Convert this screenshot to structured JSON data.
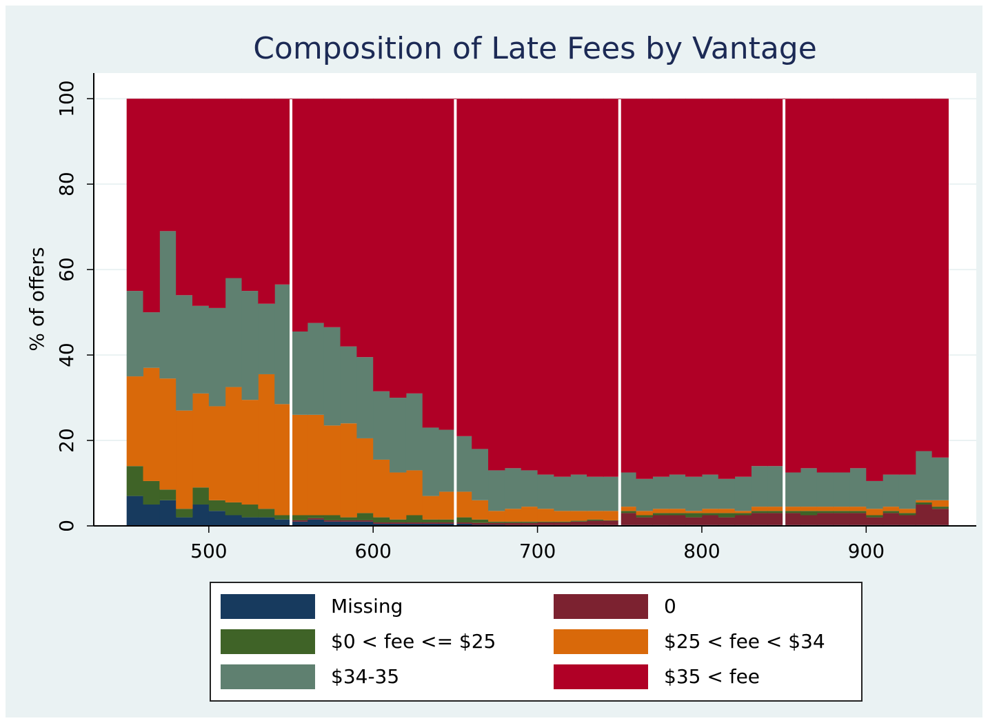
{
  "chart_data": {
    "type": "histogram",
    "title": "Composition of Late Fees by Vantage",
    "y_label": "% of offers",
    "bins": [
      450,
      460,
      470,
      480,
      490,
      500,
      510,
      520,
      530,
      540,
      550,
      560,
      570,
      580,
      590,
      600,
      610,
      620,
      630,
      640,
      650,
      660,
      670,
      680,
      690,
      700,
      710,
      720,
      730,
      740,
      750,
      760,
      770,
      780,
      790,
      800,
      810,
      820,
      830,
      840,
      850,
      860,
      870,
      880,
      890,
      900,
      910,
      920,
      930,
      940,
      950
    ],
    "stacked": true,
    "series": [
      {
        "name": "Missing",
        "color": "#173a5e",
        "values": [
          7,
          5,
          6,
          2,
          5,
          3.5,
          2.5,
          2,
          2,
          1.5,
          1,
          1.5,
          1,
          1,
          1,
          0.5,
          0.5,
          0.5,
          0.5,
          0.5,
          0.5,
          0.3,
          0.3,
          0.2,
          0.2,
          0.2,
          0.2,
          0.2,
          0.2,
          0.2,
          0.2,
          0.2,
          0.2,
          0.2,
          0.2,
          0.2,
          0.2,
          0.2,
          0.2,
          0.2,
          0.2,
          0.2,
          0.2,
          0.2,
          0.2,
          0.2,
          0.2,
          0.2,
          0.2,
          0.2
        ]
      },
      {
        "name": "0",
        "color": "#7c2230",
        "values": [
          0,
          0,
          0,
          0,
          0,
          0,
          0,
          0,
          0,
          0,
          0.3,
          0.3,
          0.3,
          0.3,
          0.3,
          0.3,
          0.3,
          0.3,
          0.3,
          0.3,
          0.3,
          0.4,
          0.4,
          0.5,
          0.5,
          0.6,
          0.6,
          0.8,
          1,
          1,
          2.8,
          1.8,
          2.3,
          2.3,
          1.8,
          2.3,
          1.8,
          2.3,
          2.8,
          2.8,
          2.8,
          2.3,
          2.8,
          2.8,
          2.8,
          1.8,
          2.8,
          2.3,
          4.8,
          3.8
        ]
      },
      {
        "name": "$0 < fee <= $25",
        "color": "#3f6327",
        "values": [
          7,
          5.5,
          2.5,
          2,
          4,
          2.5,
          3,
          3,
          2,
          1,
          1.2,
          0.7,
          1.2,
          0.7,
          1.7,
          1.2,
          0.7,
          1.7,
          0.7,
          0.7,
          1.2,
          0.8,
          0.3,
          0.3,
          0.3,
          0.2,
          0.2,
          0.2,
          0.3,
          0.1,
          0.5,
          0.5,
          0.5,
          0.5,
          1,
          0.5,
          1,
          0.5,
          0.5,
          0.5,
          0.5,
          1,
          0.5,
          0.5,
          0.5,
          0.5,
          0.5,
          0.5,
          0.5,
          0.5
        ]
      },
      {
        "name": "$25 < fee < $34",
        "color": "#d9690a",
        "values": [
          21,
          26.5,
          26,
          23,
          22,
          22,
          27,
          24.5,
          31.5,
          26,
          23.5,
          23.5,
          21,
          22,
          17.5,
          13.5,
          11,
          10.5,
          5.5,
          6.5,
          6,
          4.5,
          2.5,
          3,
          3.5,
          3,
          2.5,
          2.3,
          2,
          2.2,
          1,
          1,
          1,
          1,
          0.5,
          1,
          1,
          0.5,
          1,
          1,
          1,
          1,
          1,
          1,
          1,
          1.5,
          1,
          1,
          0.5,
          1.5
        ]
      },
      {
        "name": "$34-35",
        "color": "#5f8070",
        "values": [
          20,
          13,
          34.5,
          27,
          20.5,
          23,
          25.5,
          25.5,
          16.5,
          28,
          19.5,
          21.5,
          23,
          18,
          19,
          16,
          17.5,
          18,
          16,
          14.5,
          13,
          12,
          9.5,
          9.5,
          8.5,
          8,
          8,
          8.5,
          8,
          8,
          8,
          7.5,
          7.5,
          8,
          8,
          8,
          7,
          8,
          9.5,
          9.5,
          8,
          9,
          8,
          8,
          9,
          6.5,
          7.5,
          8,
          11.5,
          10
        ]
      },
      {
        "name": "$35 < fee",
        "color": "#b00026",
        "values": [
          45,
          50,
          31,
          46,
          48.5,
          49,
          42,
          45,
          48,
          43.5,
          54.5,
          52.5,
          53.5,
          58,
          60.5,
          68.5,
          70,
          69,
          77,
          77.5,
          79,
          82,
          87,
          86.5,
          87,
          88,
          88.5,
          88,
          88.5,
          88.5,
          87.5,
          89,
          88.5,
          88,
          88.5,
          88,
          89,
          88.5,
          86,
          86,
          87.5,
          86.5,
          87.5,
          87.5,
          86.5,
          89.5,
          88,
          88,
          82.5,
          84
        ]
      }
    ],
    "xlim": [
      430,
      967
    ],
    "xticks": [
      500,
      600,
      700,
      800,
      900
    ],
    "ylim": [
      0,
      106
    ],
    "yticks": [
      0,
      20,
      40,
      60,
      80,
      100
    ],
    "grid": true,
    "legend": "bottom"
  }
}
